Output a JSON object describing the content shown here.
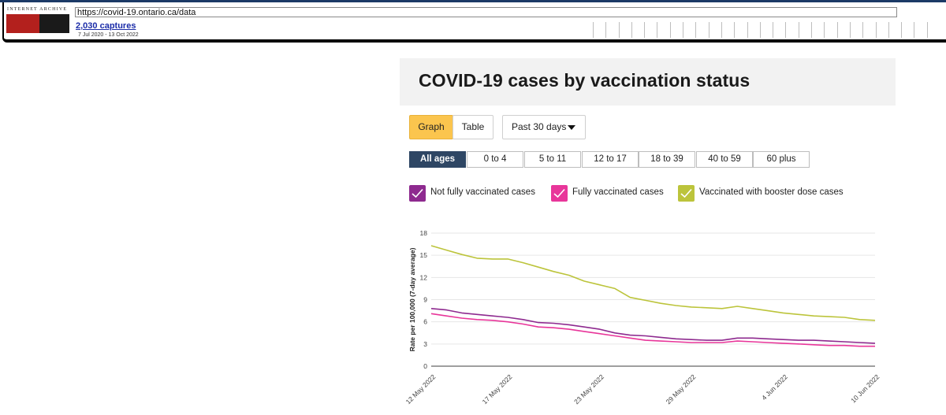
{
  "wayback": {
    "logo_top": "INTERNET ARCHIVE",
    "logo_text": "WaybackMachine",
    "url": "https://covid-19.ontario.ca/data",
    "captures": "2,030 captures",
    "date_range": "7 Jul 2020 - 13 Oct 2022"
  },
  "page": {
    "title": "COVID-19 cases by vaccination status"
  },
  "view_toggle": {
    "graph_label": "Graph",
    "table_label": "Table",
    "selected": "Graph"
  },
  "time_range": {
    "selected": "Past 30 days"
  },
  "age_groups": {
    "selected": "All ages",
    "items": [
      "All ages",
      "0 to 4",
      "5 to 11",
      "12 to 17",
      "18 to 39",
      "40 to 59",
      "60 plus"
    ]
  },
  "legend": [
    {
      "label": "Not fully vaccinated cases",
      "color": "#8e2a8f",
      "checked": true
    },
    {
      "label": "Fully vaccinated cases",
      "color": "#e8369a",
      "checked": true
    },
    {
      "label": "Vaccinated with booster dose cases",
      "color": "#bcc43b",
      "checked": true
    }
  ],
  "colors": {
    "accent_button": "#fbc54e",
    "active_age": "#2e4664",
    "grid": "#e6e6e6"
  },
  "chart_data": {
    "type": "line",
    "ylabel": "Rate per 100,000 (7-day average)",
    "ylim": [
      0,
      18
    ],
    "yticks": [
      0,
      3,
      6,
      9,
      12,
      15,
      18
    ],
    "xtick_labels": [
      "12 May 2022",
      "17 May 2022",
      "23 May 2022",
      "29 May 2022",
      "4 Jun 2022",
      "10 Jun 2022"
    ],
    "xtick_index": [
      0,
      5,
      11,
      17,
      23,
      29
    ],
    "x": [
      "12 May 2022",
      "13 May 2022",
      "14 May 2022",
      "15 May 2022",
      "16 May 2022",
      "17 May 2022",
      "18 May 2022",
      "19 May 2022",
      "20 May 2022",
      "21 May 2022",
      "22 May 2022",
      "23 May 2022",
      "24 May 2022",
      "25 May 2022",
      "26 May 2022",
      "27 May 2022",
      "28 May 2022",
      "29 May 2022",
      "30 May 2022",
      "31 May 2022",
      "1 Jun 2022",
      "2 Jun 2022",
      "3 Jun 2022",
      "4 Jun 2022",
      "5 Jun 2022",
      "6 Jun 2022",
      "7 Jun 2022",
      "8 Jun 2022",
      "9 Jun 2022",
      "10 Jun 2022"
    ],
    "series": [
      {
        "name": "Not fully vaccinated cases",
        "color": "#8e2a8f",
        "values": [
          7.8,
          7.6,
          7.2,
          7.0,
          6.8,
          6.6,
          6.3,
          5.9,
          5.8,
          5.6,
          5.3,
          5.0,
          4.5,
          4.2,
          4.1,
          3.9,
          3.7,
          3.6,
          3.5,
          3.5,
          3.8,
          3.8,
          3.7,
          3.6,
          3.5,
          3.5,
          3.4,
          3.3,
          3.2,
          3.1
        ]
      },
      {
        "name": "Fully vaccinated cases",
        "color": "#e8369a",
        "values": [
          7.1,
          6.8,
          6.5,
          6.3,
          6.2,
          6.0,
          5.7,
          5.3,
          5.2,
          5.0,
          4.7,
          4.4,
          4.1,
          3.8,
          3.5,
          3.4,
          3.3,
          3.2,
          3.2,
          3.2,
          3.4,
          3.3,
          3.2,
          3.1,
          3.0,
          2.9,
          2.8,
          2.8,
          2.7,
          2.7
        ]
      },
      {
        "name": "Vaccinated with booster dose cases",
        "color": "#bcc43b",
        "values": [
          16.3,
          15.7,
          15.1,
          14.6,
          14.5,
          14.5,
          14.0,
          13.4,
          12.8,
          12.3,
          11.5,
          11.0,
          10.5,
          9.3,
          8.9,
          8.5,
          8.2,
          8.0,
          7.9,
          7.8,
          8.1,
          7.8,
          7.5,
          7.2,
          7.0,
          6.8,
          6.7,
          6.6,
          6.3,
          6.2
        ]
      }
    ]
  }
}
